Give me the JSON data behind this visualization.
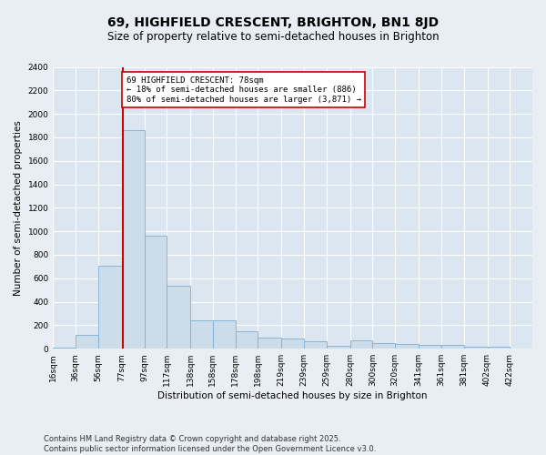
{
  "title": "69, HIGHFIELD CRESCENT, BRIGHTON, BN1 8JD",
  "subtitle": "Size of property relative to semi-detached houses in Brighton",
  "xlabel": "Distribution of semi-detached houses by size in Brighton",
  "ylabel": "Number of semi-detached properties",
  "footer": "Contains HM Land Registry data © Crown copyright and database right 2025.\nContains public sector information licensed under the Open Government Licence v3.0.",
  "bin_labels": [
    "16sqm",
    "36sqm",
    "56sqm",
    "77sqm",
    "97sqm",
    "117sqm",
    "138sqm",
    "158sqm",
    "178sqm",
    "198sqm",
    "219sqm",
    "239sqm",
    "259sqm",
    "280sqm",
    "300sqm",
    "320sqm",
    "341sqm",
    "361sqm",
    "381sqm",
    "402sqm",
    "422sqm"
  ],
  "bin_edges": [
    16,
    36,
    56,
    77,
    97,
    117,
    138,
    158,
    178,
    198,
    219,
    239,
    259,
    280,
    300,
    320,
    341,
    361,
    381,
    402,
    422
  ],
  "bar_heights": [
    10,
    120,
    710,
    1860,
    960,
    540,
    240,
    240,
    145,
    95,
    85,
    60,
    25,
    70,
    45,
    40,
    35,
    30,
    20,
    15,
    5
  ],
  "bar_color": "#cddce9",
  "bar_edge_color": "#7bafd4",
  "property_size": 78,
  "property_line_color": "#cc0000",
  "annotation_text": "69 HIGHFIELD CRESCENT: 78sqm\n← 18% of semi-detached houses are smaller (886)\n80% of semi-detached houses are larger (3,871) →",
  "annotation_box_color": "#cc0000",
  "ylim": [
    0,
    2400
  ],
  "yticks": [
    0,
    200,
    400,
    600,
    800,
    1000,
    1200,
    1400,
    1600,
    1800,
    2000,
    2200,
    2400
  ],
  "background_color": "#e8eef4",
  "plot_background_color": "#dce6f0",
  "grid_color": "#ffffff",
  "title_fontsize": 10,
  "subtitle_fontsize": 8.5,
  "label_fontsize": 7.5,
  "tick_fontsize": 6.5,
  "annotation_fontsize": 6.5,
  "footer_fontsize": 6.0
}
